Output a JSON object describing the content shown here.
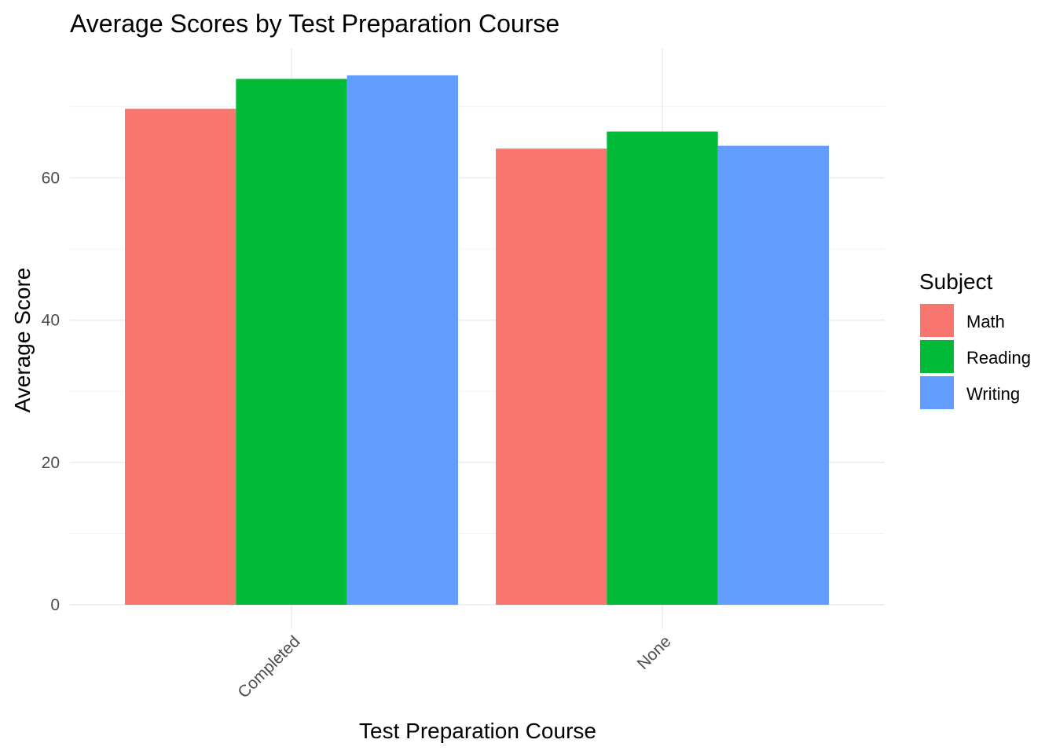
{
  "chart_data": {
    "type": "bar",
    "title": "Average Scores by Test Preparation Course",
    "xlabel": "Test Preparation Course",
    "ylabel": "Average Score",
    "categories": [
      "Completed",
      "None"
    ],
    "series": [
      {
        "name": "Math",
        "color": "#F8766D",
        "values": [
          69.7,
          64.1
        ]
      },
      {
        "name": "Reading",
        "color": "#00BA38",
        "values": [
          73.9,
          66.5
        ]
      },
      {
        "name": "Writing",
        "color": "#619CFF",
        "values": [
          74.4,
          64.5
        ]
      }
    ],
    "yticks": [
      0,
      20,
      40,
      60
    ],
    "ylim": [
      0,
      78
    ],
    "grid": true,
    "legend": {
      "title": "Subject",
      "placement": "right"
    },
    "xtick_rotation": "45deg"
  }
}
